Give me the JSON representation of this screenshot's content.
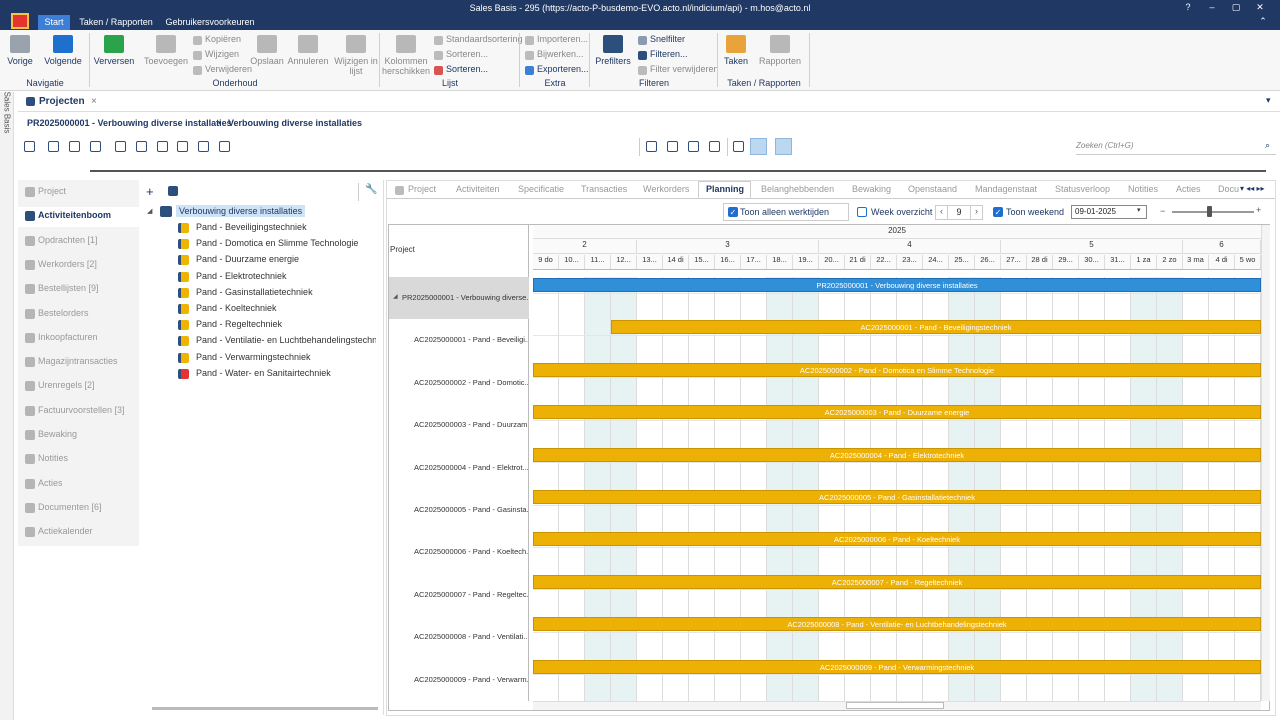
{
  "window": {
    "title": "Sales Basis - 295 (https://acto-P-busdemo-EVO.acto.nl/indicium/api) - m.hos@acto.nl",
    "menu_tabs": [
      "Start",
      "Taken / Rapporten",
      "Gebruikersvoorkeuren"
    ]
  },
  "ribbon": {
    "buttons": [
      "Vorige",
      "Volgende",
      "Verversen",
      "Toevoegen",
      "Kopiëren",
      "Wijzigen",
      "Verwijderen",
      "Opslaan",
      "Annuleren",
      "Wijzigen in lijst",
      "Kolommen herschikken",
      "Standaardsortering",
      "Sorteren...",
      "Sorteren...",
      "Importeren...",
      "Bijwerken...",
      "Exporteren...",
      "Prefilters",
      "Snelfilter",
      "Filteren...",
      "Filter verwijderen",
      "Taken",
      "Rapporten"
    ],
    "groups": [
      "Navigatie",
      "Onderhoud",
      "Lijst",
      "Extra",
      "Filteren",
      "Taken / Rapporten"
    ]
  },
  "side_label": "Sales Basis",
  "document_tab": "Projecten",
  "breadcrumb": [
    "PR2025000001 - Verbouwing diverse installaties",
    "Verbouwing diverse installaties"
  ],
  "search_placeholder": "Zoeken (Ctrl+G)",
  "left_nav": [
    "Project",
    "Activiteitenboom",
    "Opdrachten [1]",
    "Werkorders [2]",
    "Bestellijsten [9]",
    "Bestelorders",
    "Inkoopfacturen",
    "Magazijntransacties",
    "Urenregels [2]",
    "Factuurvoorstellen [3]",
    "Bewaking",
    "Notities",
    "Acties",
    "Documenten [6]",
    "Actiekalender"
  ],
  "tree": {
    "root": "Verbouwing diverse installaties",
    "children": [
      "Pand - Beveiligingstechniek",
      "Pand - Domotica en Slimme Technologie",
      "Pand - Duurzame energie",
      "Pand - Elektrotechniek",
      "Pand - Gasinstallatietechniek",
      "Pand - Koeltechniek",
      "Pand - Regeltechniek",
      "Pand - Ventilatie- en Luchtbehandelingstechn",
      "Pand - Verwarmingstechniek",
      "Pand - Water- en Sanitairtechniek"
    ]
  },
  "detail_tabs": [
    "Project",
    "Activiteiten",
    "Specificatie",
    "Transacties",
    "Werkorders",
    "Planning",
    "Belanghebbenden",
    "Bewaking",
    "Openstaand",
    "Mandagenstaat",
    "Statusverloop",
    "Notities",
    "Acties",
    "Docu"
  ],
  "planning": {
    "options": [
      {
        "label": "Toon alleen werktijden",
        "checked": true
      },
      {
        "label": "Week overzicht",
        "checked": false
      },
      {
        "label": "Toon weekend",
        "checked": true
      }
    ],
    "week": 9,
    "date": "09-01-2025"
  },
  "gantt": {
    "column_header": "Project",
    "year": 2025,
    "weeks": [
      2,
      3,
      4,
      5,
      6
    ],
    "days": [
      "9 do",
      "10...",
      "11...",
      "12...",
      "13...",
      "14 di",
      "15...",
      "16...",
      "17...",
      "18...",
      "19...",
      "20...",
      "21 di",
      "22...",
      "23...",
      "24...",
      "25...",
      "26...",
      "27...",
      "28 di",
      "29...",
      "30...",
      "31...",
      "1 za",
      "2 zo",
      "3 ma",
      "4 di",
      "5 wo"
    ],
    "rows": [
      {
        "label": "PR2025000001 - Verbouwing diverse...",
        "bar": "PR2025000001 - Verbouwing diverse installaties"
      },
      {
        "label": "AC2025000001 - Pand - Beveiligi...",
        "bar": "AC2025000001 - Pand - Beveiligingstechniek"
      },
      {
        "label": "AC2025000002 - Pand - Domotic...",
        "bar": "AC2025000002 - Pand - Domotica en Slimme Technologie"
      },
      {
        "label": "AC2025000003 - Pand - Duurzam...",
        "bar": "AC2025000003 - Pand - Duurzame energie"
      },
      {
        "label": "AC2025000004 - Pand - Elektrot...",
        "bar": "AC2025000004 - Pand - Elektrotechniek"
      },
      {
        "label": "AC2025000005 - Pand - Gasinsta...",
        "bar": "AC2025000005 - Pand - Gasinstallatietechniek"
      },
      {
        "label": "AC2025000006 - Pand - Koeltech...",
        "bar": "AC2025000006 - Pand - Koeltechniek"
      },
      {
        "label": "AC2025000007 - Pand - Regeltec...",
        "bar": "AC2025000007 - Pand - Regeltechniek"
      },
      {
        "label": "AC2025000008 - Pand - Ventilati...",
        "bar": "AC2025000008 - Pand - Ventilatie- en Luchtbehandelingstechniek"
      },
      {
        "label": "AC2025000009 - Pand - Verwarm...",
        "bar": "AC2025000009 - Pand - Verwarmingstechniek"
      }
    ]
  }
}
